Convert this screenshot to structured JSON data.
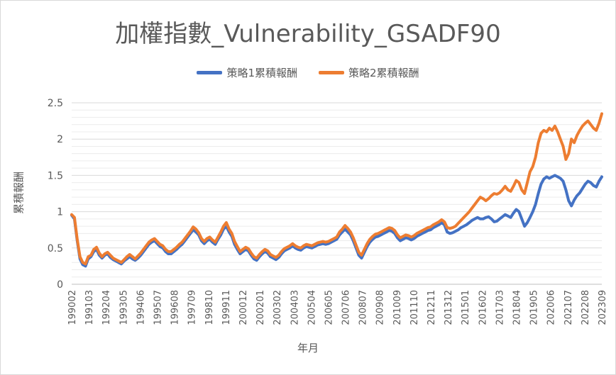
{
  "chart_data": {
    "type": "line",
    "title": "加權指數_Vulnerability_GSADF90",
    "xlabel": "年月",
    "ylabel": "累積報酬",
    "ylim": [
      0,
      2.5
    ],
    "y_ticks": [
      "0",
      "0.5",
      "1",
      "1.5",
      "2",
      "2.5"
    ],
    "x_ticks": [
      "199002",
      "199103",
      "199204",
      "199305",
      "199406",
      "199507",
      "199608",
      "199709",
      "199810",
      "199911",
      "200012",
      "200201",
      "200302",
      "200403",
      "200504",
      "200605",
      "200706",
      "200807",
      "200908",
      "201009",
      "201110",
      "201211",
      "201312",
      "201501",
      "201602",
      "201703",
      "201804",
      "201905",
      "202006",
      "202107",
      "202208",
      "202309"
    ],
    "grid": true,
    "legend_position": "top",
    "series": [
      {
        "name": "策略1累積報酬",
        "color": "#4472c4",
        "values": [
          0.95,
          0.9,
          0.6,
          0.35,
          0.27,
          0.25,
          0.35,
          0.38,
          0.45,
          0.48,
          0.4,
          0.36,
          0.4,
          0.42,
          0.37,
          0.34,
          0.32,
          0.3,
          0.28,
          0.32,
          0.35,
          0.38,
          0.35,
          0.33,
          0.36,
          0.4,
          0.45,
          0.5,
          0.55,
          0.58,
          0.6,
          0.56,
          0.52,
          0.5,
          0.45,
          0.42,
          0.42,
          0.45,
          0.48,
          0.52,
          0.55,
          0.6,
          0.65,
          0.7,
          0.75,
          0.72,
          0.68,
          0.6,
          0.56,
          0.6,
          0.62,
          0.58,
          0.55,
          0.62,
          0.68,
          0.76,
          0.8,
          0.72,
          0.66,
          0.55,
          0.48,
          0.42,
          0.45,
          0.48,
          0.46,
          0.4,
          0.35,
          0.33,
          0.38,
          0.42,
          0.45,
          0.43,
          0.38,
          0.36,
          0.34,
          0.37,
          0.42,
          0.46,
          0.48,
          0.5,
          0.53,
          0.5,
          0.48,
          0.47,
          0.5,
          0.52,
          0.51,
          0.5,
          0.52,
          0.54,
          0.55,
          0.56,
          0.55,
          0.56,
          0.58,
          0.6,
          0.62,
          0.68,
          0.72,
          0.76,
          0.72,
          0.68,
          0.6,
          0.5,
          0.4,
          0.36,
          0.44,
          0.52,
          0.58,
          0.62,
          0.65,
          0.66,
          0.68,
          0.7,
          0.72,
          0.74,
          0.73,
          0.7,
          0.64,
          0.6,
          0.62,
          0.64,
          0.63,
          0.61,
          0.63,
          0.66,
          0.68,
          0.7,
          0.72,
          0.74,
          0.75,
          0.78,
          0.8,
          0.82,
          0.85,
          0.82,
          0.72,
          0.7,
          0.71,
          0.73,
          0.75,
          0.78,
          0.8,
          0.82,
          0.85,
          0.88,
          0.9,
          0.92,
          0.9,
          0.9,
          0.92,
          0.93,
          0.9,
          0.86,
          0.87,
          0.9,
          0.93,
          0.96,
          0.94,
          0.92,
          0.98,
          1.03,
          1.0,
          0.9,
          0.8,
          0.85,
          0.92,
          1.0,
          1.1,
          1.25,
          1.38,
          1.45,
          1.48,
          1.46,
          1.48,
          1.5,
          1.48,
          1.46,
          1.42,
          1.3,
          1.15,
          1.08,
          1.16,
          1.22,
          1.26,
          1.32,
          1.38,
          1.42,
          1.4,
          1.36,
          1.34,
          1.42,
          1.48
        ]
      },
      {
        "name": "策略2累積報酬",
        "color": "#ed7d31",
        "values": [
          0.96,
          0.92,
          0.62,
          0.38,
          0.3,
          0.28,
          0.38,
          0.4,
          0.48,
          0.51,
          0.43,
          0.38,
          0.42,
          0.44,
          0.4,
          0.36,
          0.34,
          0.32,
          0.3,
          0.34,
          0.38,
          0.41,
          0.38,
          0.35,
          0.39,
          0.43,
          0.48,
          0.53,
          0.58,
          0.61,
          0.63,
          0.59,
          0.55,
          0.53,
          0.48,
          0.45,
          0.45,
          0.48,
          0.51,
          0.55,
          0.58,
          0.63,
          0.68,
          0.73,
          0.79,
          0.76,
          0.71,
          0.63,
          0.59,
          0.63,
          0.65,
          0.61,
          0.58,
          0.65,
          0.72,
          0.8,
          0.85,
          0.76,
          0.7,
          0.59,
          0.52,
          0.45,
          0.48,
          0.51,
          0.49,
          0.43,
          0.38,
          0.36,
          0.41,
          0.45,
          0.48,
          0.46,
          0.41,
          0.39,
          0.37,
          0.4,
          0.45,
          0.49,
          0.51,
          0.53,
          0.56,
          0.53,
          0.51,
          0.5,
          0.53,
          0.55,
          0.54,
          0.53,
          0.55,
          0.57,
          0.58,
          0.59,
          0.58,
          0.59,
          0.61,
          0.63,
          0.65,
          0.72,
          0.76,
          0.81,
          0.77,
          0.72,
          0.64,
          0.54,
          0.44,
          0.4,
          0.48,
          0.56,
          0.62,
          0.66,
          0.69,
          0.7,
          0.72,
          0.74,
          0.76,
          0.78,
          0.77,
          0.74,
          0.68,
          0.64,
          0.66,
          0.68,
          0.67,
          0.65,
          0.67,
          0.7,
          0.72,
          0.74,
          0.76,
          0.78,
          0.79,
          0.82,
          0.84,
          0.86,
          0.89,
          0.86,
          0.78,
          0.77,
          0.78,
          0.8,
          0.84,
          0.88,
          0.92,
          0.96,
          1.0,
          1.05,
          1.1,
          1.15,
          1.2,
          1.18,
          1.15,
          1.18,
          1.22,
          1.25,
          1.24,
          1.26,
          1.3,
          1.35,
          1.3,
          1.28,
          1.35,
          1.43,
          1.4,
          1.3,
          1.25,
          1.4,
          1.55,
          1.62,
          1.75,
          1.95,
          2.08,
          2.12,
          2.1,
          2.15,
          2.12,
          2.18,
          2.1,
          2.0,
          1.9,
          1.72,
          1.8,
          2.0,
          1.95,
          2.05,
          2.12,
          2.18,
          2.22,
          2.25,
          2.2,
          2.15,
          2.12,
          2.22,
          2.35
        ]
      }
    ]
  }
}
